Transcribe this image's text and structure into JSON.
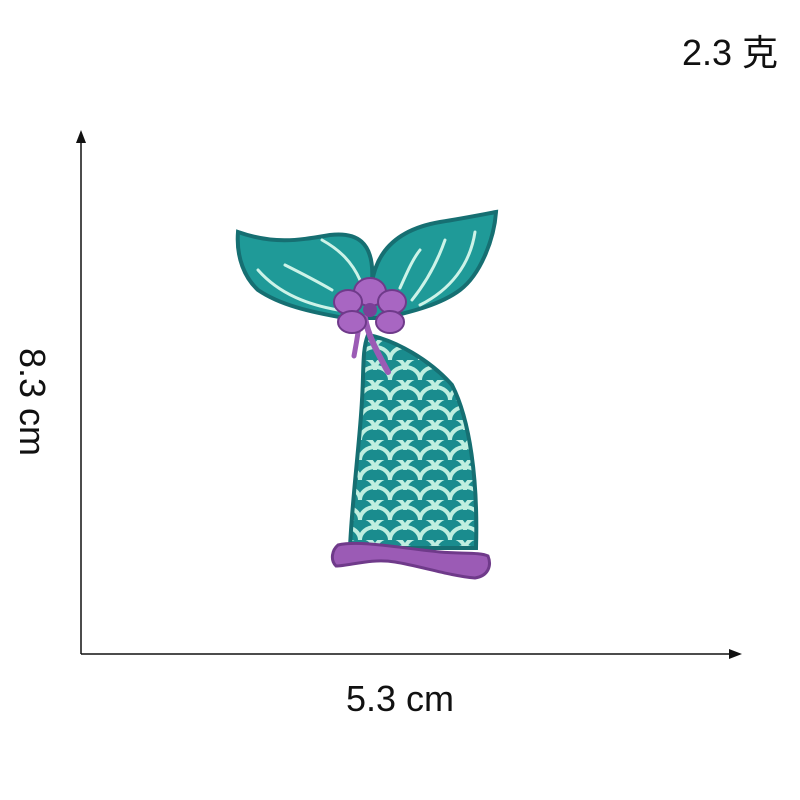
{
  "weight_label": "2.3 克",
  "width_label": "5.3 cm",
  "height_label": "8.3 cm",
  "colors": {
    "teal": "#1f9a98",
    "teal_dark": "#166f72",
    "scale_line": "#bfeee0",
    "purple": "#9b5bb5",
    "purple_dark": "#6f3a8a",
    "axis": "#111111"
  },
  "subject_icon": "mermaid-tail-patch-icon"
}
